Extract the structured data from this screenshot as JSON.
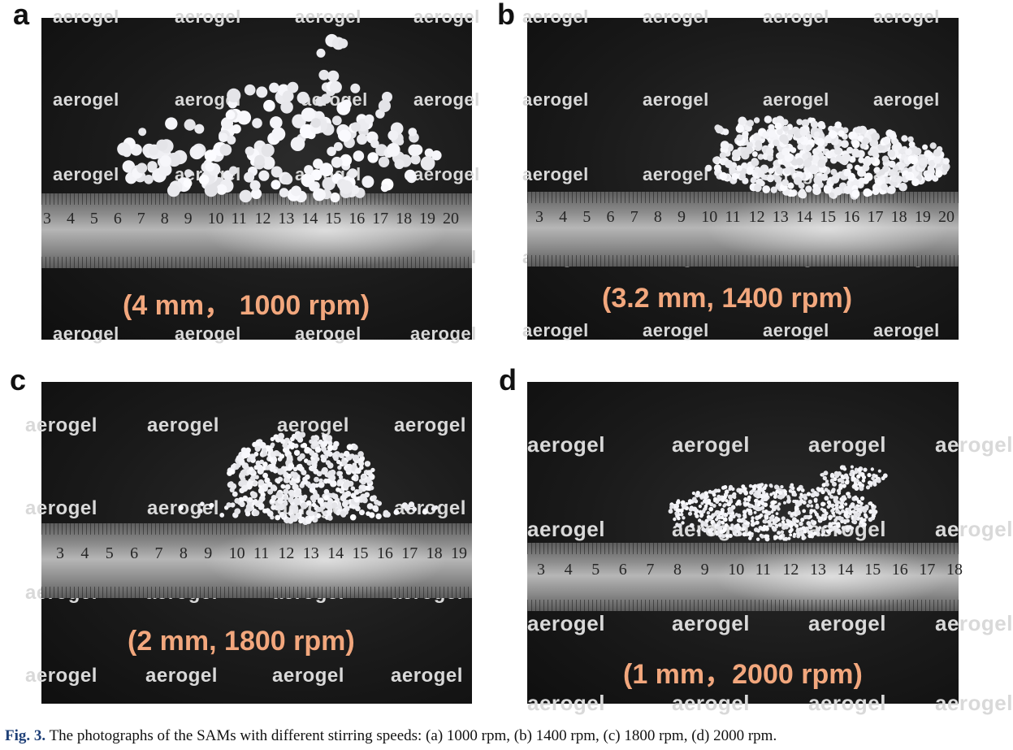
{
  "figure": {
    "label": "Fig. 3.",
    "caption": "The photographs of the SAMs with different stirring speeds: (a) 1000 rpm, (b) 1400 rpm, (c) 1800 rpm, (d) 2000 rpm."
  },
  "panels": [
    {
      "letter": "a",
      "overlay_label": "(4 mm， 1000 rpm)",
      "watermark": "aerogel",
      "ruler_numbers": [
        "3",
        "4",
        "5",
        "6",
        "7",
        "8",
        "9",
        "10",
        "11",
        "12",
        "13",
        "14",
        "15",
        "16",
        "17",
        "18",
        "19",
        "20"
      ]
    },
    {
      "letter": "b",
      "overlay_label": "(3.2 mm, 1400 rpm)",
      "watermark": "aerogel",
      "ruler_numbers": [
        "3",
        "4",
        "5",
        "6",
        "7",
        "8",
        "9",
        "10",
        "11",
        "12",
        "13",
        "14",
        "15",
        "16",
        "17",
        "18",
        "19",
        "20"
      ]
    },
    {
      "letter": "c",
      "overlay_label": "(2 mm, 1800 rpm)",
      "watermark": "aerogel",
      "ruler_numbers": [
        "3",
        "4",
        "5",
        "6",
        "7",
        "8",
        "9",
        "10",
        "11",
        "12",
        "13",
        "14",
        "15",
        "16",
        "17",
        "18",
        "19"
      ]
    },
    {
      "letter": "d",
      "overlay_label": "(1 mm，2000 rpm)",
      "watermark": "aerogel",
      "ruler_numbers": [
        "3",
        "4",
        "5",
        "6",
        "7",
        "8",
        "9",
        "10",
        "11",
        "12",
        "13",
        "14",
        "15",
        "16",
        "17",
        "18"
      ]
    }
  ],
  "colors": {
    "overlay_label": "#f2a77d",
    "watermark": "#d9d9d9",
    "figure_label": "#1e3f77",
    "background": "#151515"
  }
}
